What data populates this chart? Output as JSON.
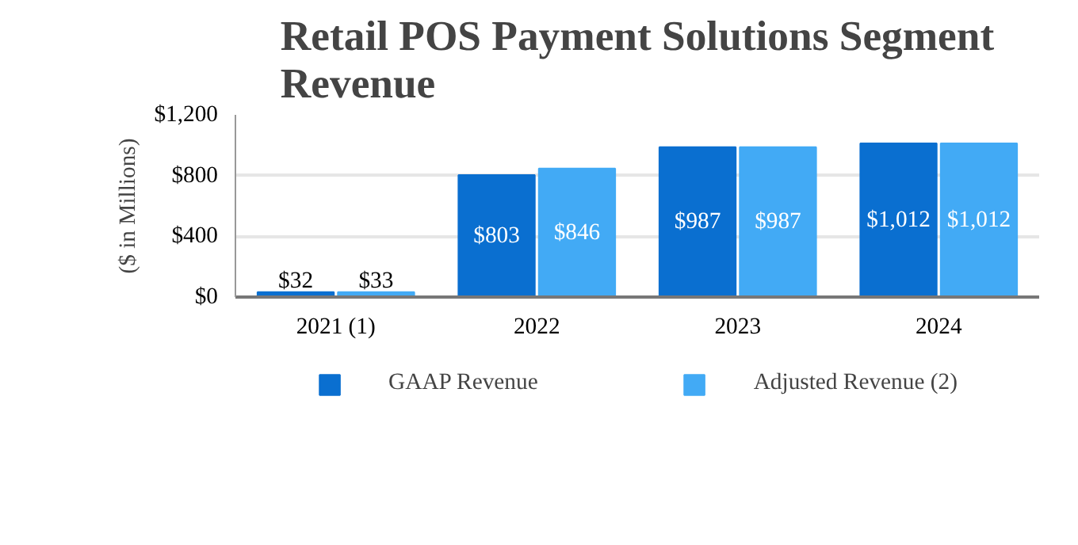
{
  "chart_data": {
    "type": "bar",
    "title": "Retail POS Payment Solutions Segment\nRevenue",
    "ylabel": "($ in Millions)",
    "categories": [
      "2021 (1)",
      "2022",
      "2023",
      "2024"
    ],
    "series": [
      {
        "name": "GAAP Revenue",
        "color": "#0a6fd0",
        "values": [
          32,
          803,
          987,
          1012
        ],
        "value_labels": [
          "$32",
          "$803",
          "$987",
          "$1,012"
        ]
      },
      {
        "name": "Adjusted Revenue (2)",
        "color": "#42aaf5",
        "values": [
          33,
          846,
          987,
          1012
        ],
        "value_labels": [
          "$33",
          "$846",
          "$987",
          "$1,012"
        ]
      }
    ],
    "ylim": [
      0,
      1200
    ],
    "yticks": [
      {
        "value": 0,
        "label": "$0"
      },
      {
        "value": 400,
        "label": "$400"
      },
      {
        "value": 800,
        "label": "$800"
      },
      {
        "value": 1200,
        "label": "$1,200"
      }
    ],
    "grid": "y",
    "legend": "bottom"
  }
}
